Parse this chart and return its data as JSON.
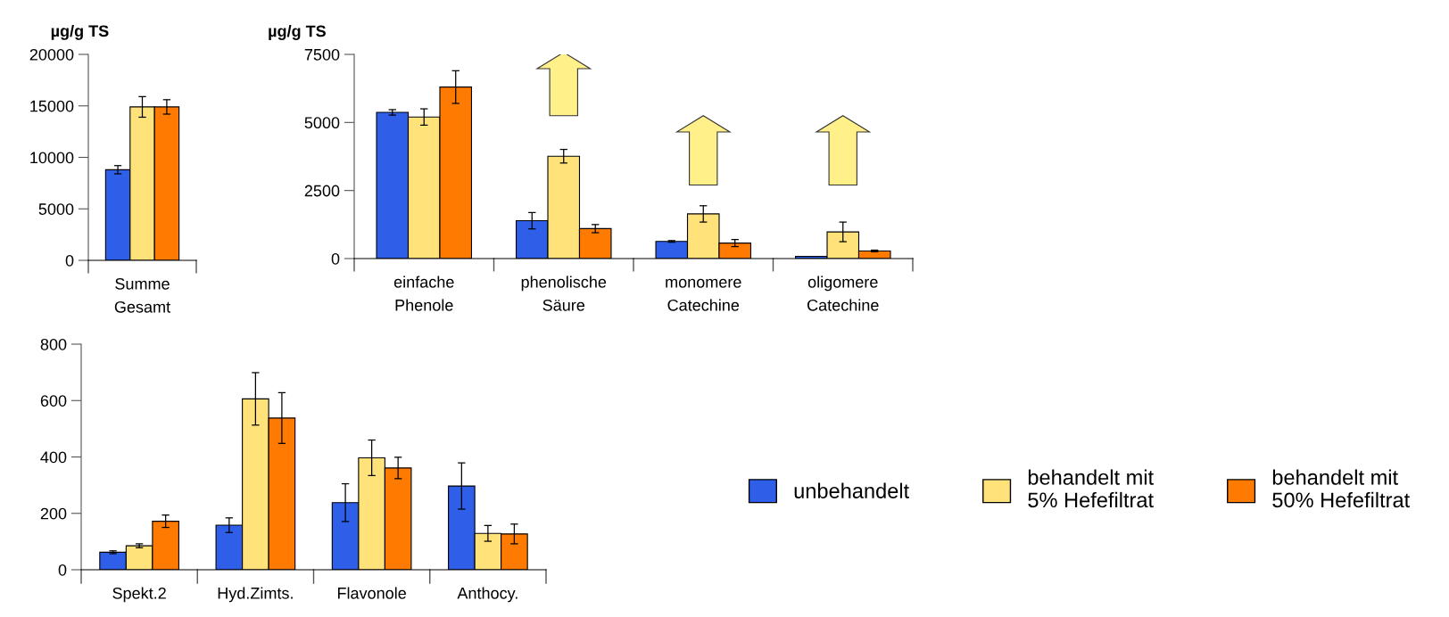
{
  "chart_data": [
    {
      "type": "bar",
      "ylabel": "µg/g TS",
      "categories": [
        "Summe\nGesamt"
      ],
      "ylim": [
        0,
        20000
      ],
      "yticks": [
        0,
        5000,
        10000,
        15000,
        20000
      ],
      "grid": false,
      "legend": "bottom right",
      "series": [
        {
          "name": "unbehandelt",
          "color": "#2f5fe8",
          "values": [
            8800
          ],
          "errors": [
            400
          ]
        },
        {
          "name": "behandelt mit\n5% Hefefiltrat",
          "color": "#ffe27a",
          "values": [
            14900
          ],
          "errors": [
            1000
          ]
        },
        {
          "name": "behandelt mit\n50% Hefefiltrat",
          "color": "#ff7a00",
          "values": [
            14900
          ],
          "errors": [
            700
          ]
        }
      ]
    },
    {
      "type": "bar",
      "ylabel": "µg/g TS",
      "categories": [
        "einfache\nPhenole",
        "phenolische\nSäure",
        "monomere\nCatechine",
        "oligomere\nCatechine"
      ],
      "ylim": [
        0,
        7500
      ],
      "yticks": [
        0,
        2500,
        5000,
        7500
      ],
      "grid": false,
      "series": [
        {
          "color": "#2f5fe8",
          "values": [
            5370,
            1390,
            630,
            80
          ],
          "errors": [
            100,
            300,
            30,
            null
          ]
        },
        {
          "color": "#ffe27a",
          "values": [
            5200,
            3760,
            1640,
            980
          ],
          "errors": [
            300,
            250,
            300,
            360
          ]
        },
        {
          "color": "#ff7a00",
          "values": [
            6300,
            1100,
            570,
            280
          ],
          "errors": [
            600,
            150,
            130,
            30
          ]
        }
      ]
    },
    {
      "type": "bar",
      "categories": [
        "Spekt.2",
        "Hyd.Zimts.",
        "Flavonole",
        "Anthocy."
      ],
      "ylim": [
        0,
        800
      ],
      "yticks": [
        0,
        200,
        400,
        600,
        800
      ],
      "grid": false,
      "series": [
        {
          "color": "#2f5fe8",
          "values": [
            62,
            158,
            238,
            297
          ],
          "errors": [
            5,
            26,
            67,
            82
          ]
        },
        {
          "color": "#ffe27a",
          "values": [
            85,
            606,
            397,
            129
          ],
          "errors": [
            7,
            93,
            63,
            28
          ]
        },
        {
          "color": "#ff7a00",
          "values": [
            172,
            538,
            361,
            127
          ],
          "errors": [
            22,
            90,
            38,
            35
          ]
        }
      ]
    }
  ]
}
